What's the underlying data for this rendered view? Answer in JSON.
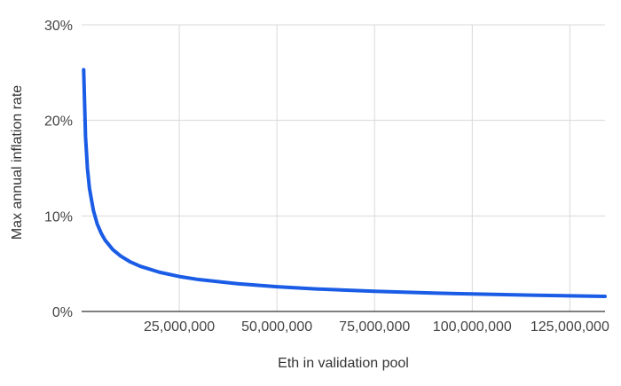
{
  "chart_data": {
    "type": "line",
    "title": "",
    "xlabel": "Eth in validation pool",
    "ylabel": "Max annual inflation rate",
    "xlim": [
      0,
      134000000
    ],
    "ylim": [
      0,
      30
    ],
    "x_ticks": [
      25000000,
      50000000,
      75000000,
      100000000,
      125000000
    ],
    "x_tick_labels": [
      "25,000,000",
      "50,000,000",
      "75,000,000",
      "100,000,000",
      "125,000,000"
    ],
    "y_ticks": [
      0,
      10,
      20,
      30
    ],
    "y_tick_labels": [
      "0%",
      "10%",
      "20%",
      "30%"
    ],
    "grid": true,
    "legend": "none",
    "series": [
      {
        "color": "#1a5ce6",
        "x": [
          524288,
          1000000,
          1500000,
          2000000,
          3000000,
          4000000,
          5000000,
          6000000,
          8000000,
          10000000,
          12500000,
          15000000,
          20000000,
          25000000,
          30000000,
          40000000,
          50000000,
          60000000,
          75000000,
          90000000,
          100000000,
          115000000,
          125000000,
          134000000
        ],
        "values": [
          25.3,
          18.3,
          14.95,
          12.9,
          10.6,
          9.15,
          8.2,
          7.47,
          6.47,
          5.8,
          5.18,
          4.73,
          4.1,
          3.66,
          3.34,
          2.9,
          2.59,
          2.36,
          2.11,
          1.93,
          1.83,
          1.71,
          1.64,
          1.58
        ]
      }
    ]
  }
}
